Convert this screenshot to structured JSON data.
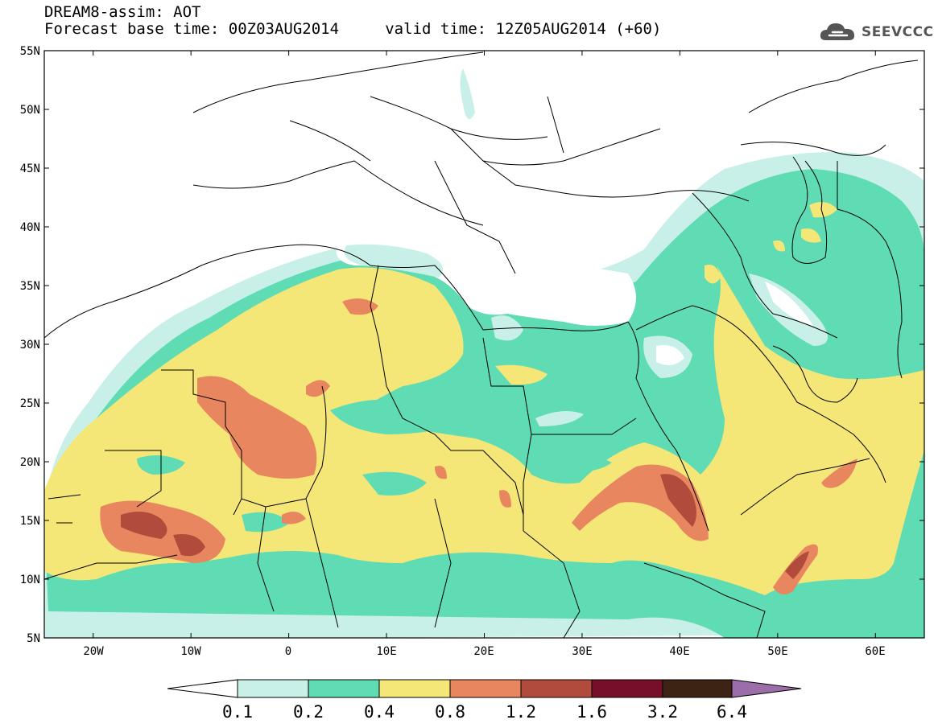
{
  "header": {
    "line1": "DREAM8-assim: AOT",
    "line2": "Forecast base time: 00Z03AUG2014     valid time: 12Z05AUG2014 (+60)"
  },
  "logo": {
    "text": "SEEVCCC",
    "icon": "cloud-icon"
  },
  "map": {
    "lon_range": [
      -25,
      65
    ],
    "lat_range": [
      5,
      55
    ],
    "lon_ticks": [
      "20W",
      "10W",
      "0",
      "10E",
      "20E",
      "30E",
      "40E",
      "50E",
      "60E"
    ],
    "lat_ticks": [
      "55N",
      "50N",
      "45N",
      "40N",
      "35N",
      "30N",
      "25N",
      "20N",
      "15N",
      "10N",
      "5N"
    ]
  },
  "colorbar": {
    "labels": [
      "0.1",
      "0.2",
      "0.4",
      "0.8",
      "1.2",
      "1.6",
      "3.2",
      "6.4"
    ],
    "colors": [
      "#ffffff",
      "#c8f0e8",
      "#5fdcb4",
      "#f5e678",
      "#e8875f",
      "#b14b3c",
      "#780f28",
      "#3c2314",
      "#9b6eaa"
    ]
  },
  "colors": {
    "aot_0_1": "#c8f0e8",
    "aot_0_2": "#5fdcb4",
    "aot_0_4": "#f5e678",
    "aot_0_8": "#e8875f",
    "aot_1_2": "#b14b3c",
    "aot_1_6": "#780f28",
    "aot_3_2": "#3c2314",
    "aot_6_4": "#9b6eaa"
  }
}
